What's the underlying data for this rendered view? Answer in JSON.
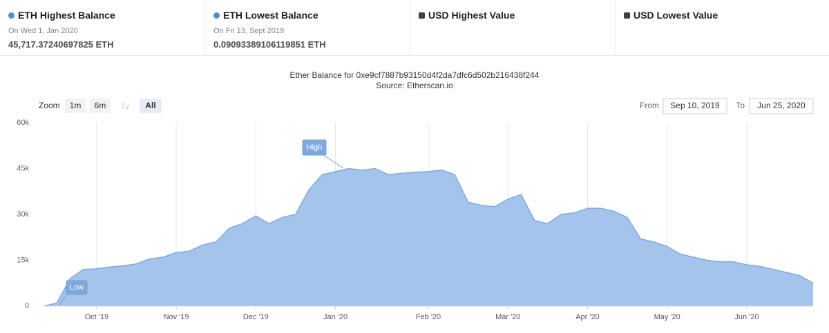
{
  "cards": [
    {
      "title": "ETH Highest Balance",
      "date": "On Wed 1, Jan 2020",
      "value": "45,717.37240697825 ETH"
    },
    {
      "title": "ETH Lowest Balance",
      "date": "On Fri 13, Sept 2019",
      "value": "0.09093389106119851 ETH"
    },
    {
      "title": "USD Highest Value"
    },
    {
      "title": "USD Lowest Value"
    }
  ],
  "controls": {
    "zoom": "Zoom",
    "buttons": [
      "1m",
      "6m",
      "1y",
      "All"
    ],
    "from_label": "From",
    "from": "Sep 10, 2019",
    "to_label": "To",
    "to": "Jun 25, 2020"
  },
  "chart_data": {
    "type": "area",
    "title": "Ether Balance for 0xe9cf7887b93150d4f2da7dfc6d502b216438f244",
    "subtitle": "Source: Etherscan.io",
    "categories": [
      null,
      null,
      null,
      null,
      "Oct '19",
      null,
      null,
      null,
      null,
      null,
      "Nov '19",
      null,
      null,
      null,
      null,
      null,
      "Dec '19",
      null,
      null,
      null,
      null,
      null,
      "Jan '20",
      null,
      null,
      null,
      null,
      null,
      null,
      "Feb '20",
      null,
      null,
      null,
      null,
      null,
      "Mar '20",
      null,
      null,
      null,
      null,
      null,
      "Apr '20",
      null,
      null,
      null,
      null,
      null,
      "May '20",
      null,
      null,
      null,
      null,
      null,
      "Jun '20",
      null,
      null,
      null,
      null,
      null
    ],
    "values": [
      0,
      1000,
      9000,
      12000,
      12200,
      12800,
      13200,
      13800,
      15500,
      16000,
      17500,
      18000,
      20000,
      21000,
      25500,
      27000,
      29500,
      27000,
      29000,
      30000,
      38000,
      43000,
      44000,
      45000,
      44500,
      45000,
      43000,
      43500,
      43800,
      44000,
      44500,
      43000,
      34000,
      33000,
      32500,
      35000,
      36500,
      28000,
      27000,
      30000,
      30500,
      32000,
      32000,
      31000,
      29000,
      22000,
      21000,
      19500,
      17000,
      16000,
      15000,
      14500,
      14500,
      13500,
      13000,
      12000,
      11000,
      10000,
      7500
    ],
    "color": "#a5c4ec",
    "ylim": [
      0,
      60000
    ],
    "yticks": [
      0,
      {
        "value": 15000,
        "label": "15k"
      },
      {
        "value": 30000,
        "label": "30k"
      },
      {
        "value": 45000,
        "label": "45k"
      },
      {
        "value": 60000,
        "label": "60k"
      }
    ],
    "grid": true,
    "annotations": [
      "Low",
      "High"
    ]
  }
}
